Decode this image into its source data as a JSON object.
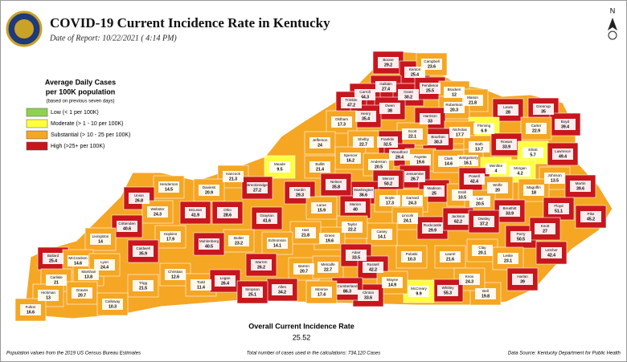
{
  "header": {
    "title": "COVID-19 Current Incidence Rate in Kentucky",
    "date": "Date of Report: 10/22/2021 ( 4:14 PM)"
  },
  "legend": {
    "title_line1": "Average Daily Cases",
    "title_line2": "per 100K population",
    "note": "(based on previous seven days)",
    "items": [
      {
        "label": "Low (< 1 per 100K)",
        "color": "#8fd14f"
      },
      {
        "label": "Moderate (> 1 - 10 per 100K)",
        "color": "#ffff40"
      },
      {
        "label": "Substantial (> 10 - 25 per 100K)",
        "color": "#f5a623"
      },
      {
        "label": "High (>25+ per 100K)",
        "color": "#c8161d"
      }
    ]
  },
  "summary": {
    "label": "Overall Current Incidence Rate",
    "value": 25.52
  },
  "footer": {
    "left": "Population values from the 2019 US Census Bureau Estimates",
    "center": "Total number of cases used in the calculations: 734,120 Cases",
    "right": "Data Source: Kentucky Department for Public Health"
  },
  "counties": [
    {
      "name": "Boone",
      "rate": 29.2,
      "color": "#c8161d"
    },
    {
      "name": "Kenton",
      "rate": 25.4,
      "color": "#c8161d"
    },
    {
      "name": "Campbell",
      "rate": 23.6,
      "color": "#f5a623"
    },
    {
      "name": "Gallatin",
      "rate": 27.4,
      "color": "#c8161d"
    },
    {
      "name": "Carroll",
      "rate": 44.3,
      "color": "#c8161d"
    },
    {
      "name": "Trimble",
      "rate": 47.2,
      "color": "#c8161d"
    },
    {
      "name": "Grant",
      "rate": 30.2,
      "color": "#c8161d"
    },
    {
      "name": "Pendleton",
      "rate": 25.5,
      "color": "#c8161d"
    },
    {
      "name": "Bracken",
      "rate": 12,
      "color": "#f5a623"
    },
    {
      "name": "Mason",
      "rate": 21.8,
      "color": "#f5a623"
    },
    {
      "name": "Robertson",
      "rate": 20.3,
      "color": "#f5a623"
    },
    {
      "name": "Owen",
      "rate": 38,
      "color": "#c8161d"
    },
    {
      "name": "Henry",
      "rate": 35.4,
      "color": "#c8161d"
    },
    {
      "name": "Oldham",
      "rate": 17.3,
      "color": "#f5a623"
    },
    {
      "name": "Harrison",
      "rate": 33,
      "color": "#c8161d"
    },
    {
      "name": "Lewis",
      "rate": 28,
      "color": "#c8161d"
    },
    {
      "name": "Greenup",
      "rate": 35,
      "color": "#c8161d"
    },
    {
      "name": "Boyd",
      "rate": 39.4,
      "color": "#c8161d"
    },
    {
      "name": "Carter",
      "rate": 22.9,
      "color": "#f5a623"
    },
    {
      "name": "Fleming",
      "rate": 6.9,
      "color": "#ffff40"
    },
    {
      "name": "Nicholas",
      "rate": 17.7,
      "color": "#f5a623"
    },
    {
      "name": "Bourbon",
      "rate": 30.3,
      "color": "#c8161d"
    },
    {
      "name": "Scott",
      "rate": 22.1,
      "color": "#f5a623"
    },
    {
      "name": "Franklin",
      "rate": 32.5,
      "color": "#c8161d"
    },
    {
      "name": "Shelby",
      "rate": 22.7,
      "color": "#f5a623"
    },
    {
      "name": "Jefferson",
      "rate": 24,
      "color": "#f5a623"
    },
    {
      "name": "Bath",
      "rate": 13.7,
      "color": "#f5a623"
    },
    {
      "name": "Rowan",
      "rate": 33.9,
      "color": "#c8161d"
    },
    {
      "name": "Elliott",
      "rate": 5.7,
      "color": "#ffff40"
    },
    {
      "name": "Lawrence",
      "rate": 49.4,
      "color": "#c8161d"
    },
    {
      "name": "Montgomery",
      "rate": 16.1,
      "color": "#f5a623"
    },
    {
      "name": "Woodford",
      "rate": 29.4,
      "color": "#c8161d"
    },
    {
      "name": "Fayette",
      "rate": 19.6,
      "color": "#f5a623"
    },
    {
      "name": "Clark",
      "rate": 14.6,
      "color": "#f5a623"
    },
    {
      "name": "Spencer",
      "rate": 16.2,
      "color": "#f5a623"
    },
    {
      "name": "Anderson",
      "rate": 20.5,
      "color": "#f5a623"
    },
    {
      "name": "Bullitt",
      "rate": 21.4,
      "color": "#f5a623"
    },
    {
      "name": "Menifee",
      "rate": 4,
      "color": "#ffff40"
    },
    {
      "name": "Morgan",
      "rate": 4.2,
      "color": "#ffff40"
    },
    {
      "name": "Johnson",
      "rate": 13.5,
      "color": "#f5a623"
    },
    {
      "name": "Martin",
      "rate": 39.6,
      "color": "#c8161d"
    },
    {
      "name": "Meade",
      "rate": 9.5,
      "color": "#ffff40"
    },
    {
      "name": "Hancock",
      "rate": 21.3,
      "color": "#f5a623"
    },
    {
      "name": "Breckinridge",
      "rate": 27.2,
      "color": "#c8161d"
    },
    {
      "name": "Daviess",
      "rate": 20.9,
      "color": "#f5a623"
    },
    {
      "name": "Henderson",
      "rate": 14.5,
      "color": "#f5a623"
    },
    {
      "name": "Jessamine",
      "rate": 26.7,
      "color": "#c8161d"
    },
    {
      "name": "Mercer",
      "rate": 50.2,
      "color": "#c8161d"
    },
    {
      "name": "Washington",
      "rate": 36.6,
      "color": "#c8161d"
    },
    {
      "name": "Nelson",
      "rate": 35.8,
      "color": "#c8161d"
    },
    {
      "name": "Hardin",
      "rate": 29.3,
      "color": "#c8161d"
    },
    {
      "name": "Madison",
      "rate": 25,
      "color": "#c8161d"
    },
    {
      "name": "Estill",
      "rate": 10.5,
      "color": "#f5a623"
    },
    {
      "name": "Powell",
      "rate": 42.4,
      "color": "#c8161d"
    },
    {
      "name": "Wolfe",
      "rate": 20,
      "color": "#f5a623"
    },
    {
      "name": "Magoffin",
      "rate": 18.0,
      "color": "#f5a623"
    },
    {
      "name": "Lee",
      "rate": 20.5,
      "color": "#f5a623"
    },
    {
      "name": "Breathitt",
      "rate": 33.9,
      "color": "#c8161d"
    },
    {
      "name": "Floyd",
      "rate": 51.1,
      "color": "#c8161d"
    },
    {
      "name": "Pike",
      "rate": 45.2,
      "color": "#c8161d"
    },
    {
      "name": "Union",
      "rate": 26.8,
      "color": "#c8161d"
    },
    {
      "name": "Webster",
      "rate": 24.3,
      "color": "#f5a623"
    },
    {
      "name": "McLean",
      "rate": 41.9,
      "color": "#c8161d"
    },
    {
      "name": "Ohio",
      "rate": 28.6,
      "color": "#c8161d"
    },
    {
      "name": "Grayson",
      "rate": 41.6,
      "color": "#c8161d"
    },
    {
      "name": "Larue",
      "rate": 15.9,
      "color": "#f5a623"
    },
    {
      "name": "Marion",
      "rate": 40,
      "color": "#c8161d"
    },
    {
      "name": "Boyle",
      "rate": 17.3,
      "color": "#f5a623"
    },
    {
      "name": "Garrard",
      "rate": 24.3,
      "color": "#f5a623"
    },
    {
      "name": "Lincoln",
      "rate": 24.1,
      "color": "#f5a623"
    },
    {
      "name": "Rockcastle",
      "rate": 29.9,
      "color": "#c8161d"
    },
    {
      "name": "Jackson",
      "rate": 62.2,
      "color": "#c8161d"
    },
    {
      "name": "Owsley",
      "rate": 37.2,
      "color": "#c8161d"
    },
    {
      "name": "Perry",
      "rate": 50.5,
      "color": "#c8161d"
    },
    {
      "name": "Knott",
      "rate": 27,
      "color": "#c8161d"
    },
    {
      "name": "Letcher",
      "rate": 42.4,
      "color": "#c8161d"
    },
    {
      "name": "Casey",
      "rate": 14.1,
      "color": "#f5a623"
    },
    {
      "name": "Taylor",
      "rate": 22.2,
      "color": "#f5a623"
    },
    {
      "name": "Green",
      "rate": 19.6,
      "color": "#f5a623"
    },
    {
      "name": "Hart",
      "rate": 21.8,
      "color": "#f5a623"
    },
    {
      "name": "Edmonson",
      "rate": 14.1,
      "color": "#f5a623"
    },
    {
      "name": "Butler",
      "rate": 23.2,
      "color": "#f5a623"
    },
    {
      "name": "Muhlenberg",
      "rate": 40.5,
      "color": "#c8161d"
    },
    {
      "name": "Hopkins",
      "rate": 17.9,
      "color": "#f5a623"
    },
    {
      "name": "Crittenden",
      "rate": 40.6,
      "color": "#c8161d"
    },
    {
      "name": "Livingston",
      "rate": 14,
      "color": "#f5a623"
    },
    {
      "name": "Caldwell",
      "rate": 35.9,
      "color": "#c8161d"
    },
    {
      "name": "Ballard",
      "rate": 25.4,
      "color": "#c8161d"
    },
    {
      "name": "McCracken",
      "rate": 14.6,
      "color": "#f5a623"
    },
    {
      "name": "Marshall",
      "rate": 13.8,
      "color": "#f5a623"
    },
    {
      "name": "Lyon",
      "rate": 24.4,
      "color": "#f5a623"
    },
    {
      "name": "Christian",
      "rate": 12.6,
      "color": "#f5a623"
    },
    {
      "name": "Todd",
      "rate": 11.4,
      "color": "#f5a623"
    },
    {
      "name": "Trigg",
      "rate": 21.5,
      "color": "#f5a623"
    },
    {
      "name": "Logan",
      "rate": 26.4,
      "color": "#c8161d"
    },
    {
      "name": "Warren",
      "rate": 26.2,
      "color": "#c8161d"
    },
    {
      "name": "Barren",
      "rate": 20.7,
      "color": "#f5a623"
    },
    {
      "name": "Metcalfe",
      "rate": 22.7,
      "color": "#f5a623"
    },
    {
      "name": "Adair",
      "rate": 33.5,
      "color": "#c8161d"
    },
    {
      "name": "Russell",
      "rate": 42.2,
      "color": "#c8161d"
    },
    {
      "name": "Pulaski",
      "rate": 10.3,
      "color": "#f5a623"
    },
    {
      "name": "Laurel",
      "rate": 21.6,
      "color": "#f5a623"
    },
    {
      "name": "Clay",
      "rate": 20.1,
      "color": "#f5a623"
    },
    {
      "name": "Leslie",
      "rate": 23.1,
      "color": "#f5a623"
    },
    {
      "name": "Harlan",
      "rate": 39,
      "color": "#c8161d"
    },
    {
      "name": "Bell",
      "rate": 19.8,
      "color": "#f5a623"
    },
    {
      "name": "Knox",
      "rate": 24.3,
      "color": "#f5a623"
    },
    {
      "name": "Whitley",
      "rate": 55.3,
      "color": "#c8161d"
    },
    {
      "name": "McCreary",
      "rate": 9.9,
      "color": "#ffff40"
    },
    {
      "name": "Wayne",
      "rate": 14.9,
      "color": "#f5a623"
    },
    {
      "name": "Clinton",
      "rate": 33.6,
      "color": "#c8161d"
    },
    {
      "name": "Cumberland",
      "rate": 86.3,
      "color": "#c8161d"
    },
    {
      "name": "Monroe",
      "rate": 17.4,
      "color": "#f5a623"
    },
    {
      "name": "Allen",
      "rate": 34.2,
      "color": "#c8161d"
    },
    {
      "name": "Simpson",
      "rate": 25.1,
      "color": "#c8161d"
    },
    {
      "name": "Carlisle",
      "rate": 21,
      "color": "#f5a623"
    },
    {
      "name": "Hickman",
      "rate": 13,
      "color": "#f5a623"
    },
    {
      "name": "Graves",
      "rate": 20.7,
      "color": "#f5a623"
    },
    {
      "name": "Calloway",
      "rate": 10.3,
      "color": "#f5a623"
    },
    {
      "name": "Fulton",
      "rate": 16.6,
      "color": "#f5a623"
    }
  ]
}
